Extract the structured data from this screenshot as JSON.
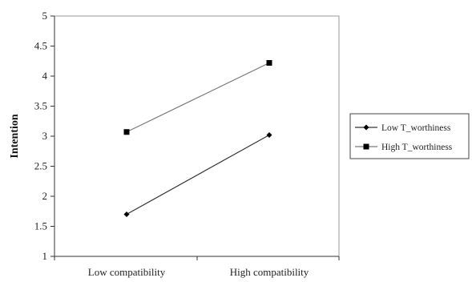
{
  "chart_data": {
    "type": "line",
    "title": "",
    "xlabel": "",
    "ylabel": "Intention",
    "categories": [
      "Low compatibility",
      "High compatibility"
    ],
    "ylim": [
      1,
      5
    ],
    "yticks": [
      "1",
      "1.5",
      "2",
      "2.5",
      "3",
      "3.5",
      "4",
      "4.5",
      "5"
    ],
    "grid": false,
    "legend": "right",
    "series": [
      {
        "name": "Low T_worthiness",
        "values": [
          1.7,
          3.02
        ],
        "marker": "diamond",
        "color": "#333333"
      },
      {
        "name": "High T_worthiness",
        "values": [
          3.07,
          4.22
        ],
        "marker": "square",
        "color": "#777777"
      }
    ]
  }
}
